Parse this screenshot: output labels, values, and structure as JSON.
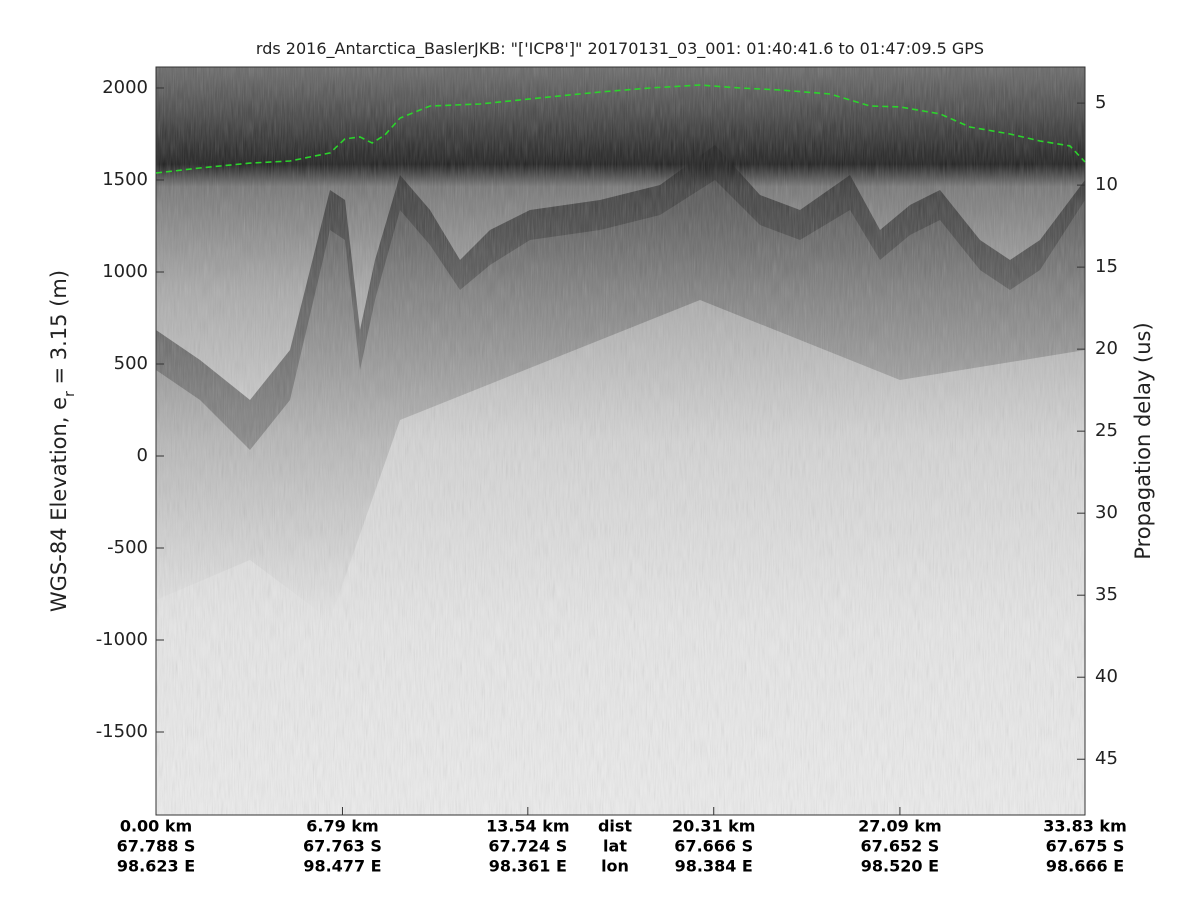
{
  "chart_data": {
    "type": "line",
    "title": "rds 2016_Antarctica_BaslerJKB: \"['ICP8']\"  20170131_03_001: 01:40:41.6 to 01:47:09.5 GPS",
    "ylabel_parts": [
      "WGS-84 Elevation, e",
      "r",
      " = 3.15 (m)"
    ],
    "y2label": "Propagation delay (us)",
    "ylim": [
      -1951,
      2114
    ],
    "yticks": [
      -1500,
      -1000,
      -500,
      0,
      500,
      1000,
      1500,
      2000
    ],
    "y2lim": [
      48.4,
      2.8
    ],
    "y2ticks": [
      5,
      10,
      15,
      20,
      25,
      30,
      35,
      40,
      45
    ],
    "xlim": [
      0,
      33.83
    ],
    "xticks": [
      {
        "value": 0,
        "label": "0.00 km"
      },
      {
        "value": 6.79,
        "label": "6.79 km"
      },
      {
        "value": 13.54,
        "label": "13.54 km"
      },
      {
        "value": 20.31,
        "label": "20.31 km"
      },
      {
        "value": 27.09,
        "label": "27.09 km"
      },
      {
        "value": 33.83,
        "label": "33.83 km"
      }
    ],
    "xtick_lat": [
      "67.788 S",
      "67.763 S",
      "67.724 S",
      "67.666 S",
      "67.652 S",
      "67.675 S"
    ],
    "xtick_lon": [
      "98.623 E",
      "98.477 E",
      "98.361 E",
      "98.384 E",
      "98.520 E",
      "98.666 E"
    ],
    "row_labels": [
      "dist",
      "lat",
      "lon"
    ],
    "series": [
      {
        "color": "#2bd52b",
        "x": [
          0,
          1.6,
          3.42,
          4.88,
          6.34,
          6.88,
          7.43,
          7.87,
          8.34,
          8.89,
          9.98,
          11.8,
          13.26,
          14.71,
          16.17,
          17.99,
          19.81,
          21.27,
          22.73,
          24.55,
          26.0,
          27.09,
          28.55,
          29.64,
          31.1,
          32.19,
          33.28,
          33.83
        ],
        "values": [
          1538,
          1565,
          1592,
          1603,
          1647,
          1723,
          1734,
          1701,
          1745,
          1837,
          1902,
          1913,
          1935,
          1957,
          1978,
          2000,
          2016,
          2000,
          1989,
          1967,
          1902,
          1897,
          1859,
          1788,
          1750,
          1712,
          1685,
          1598
        ]
      }
    ]
  }
}
